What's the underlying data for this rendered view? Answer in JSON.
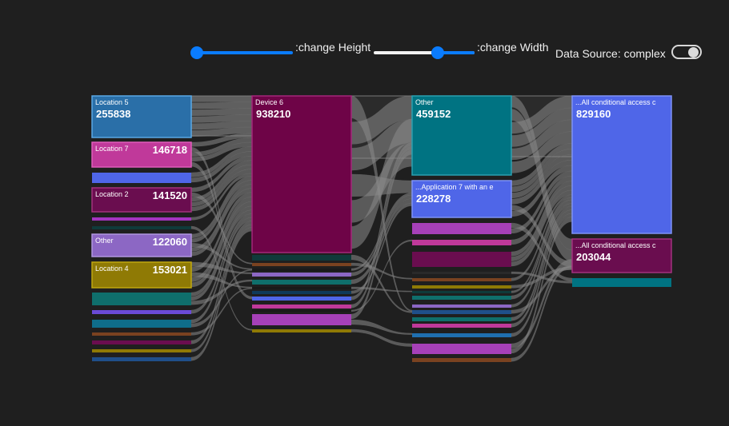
{
  "controls": {
    "height_label": ":change Height",
    "width_label": ":change Width",
    "height_value": 1.0,
    "width_value": 0.6,
    "source_label": "Data Source: complex",
    "source_toggle_on": true,
    "accent_color": "#0a7cff"
  },
  "diagram": {
    "background": "#1f1f1f",
    "link_color": "#8a8a8a",
    "columns": [
      {
        "nodes": [
          {
            "name": "Location 5",
            "value": "255838",
            "color": "#2a6fa8",
            "border": "#5aa9e6"
          },
          {
            "name": "Location 7",
            "value": "146718",
            "color": "#c0399a",
            "border": "#e05cbb"
          },
          {
            "name": "",
            "value": "",
            "color": "#4f66e8"
          },
          {
            "name": "Location 2",
            "value": "141520",
            "color": "#6a0d4f",
            "border": "#a3327f"
          },
          {
            "name": "",
            "value": "",
            "color": "#a334c0"
          },
          {
            "name": "",
            "value": "",
            "color": "#0f3a3a"
          },
          {
            "name": "Other",
            "value": "122060",
            "color": "#8c67c4",
            "border": "#b196e0"
          },
          {
            "name": "Location 4",
            "value": "153021",
            "color": "#8f7a05",
            "border": "#c0a70e"
          },
          {
            "name": "",
            "value": "",
            "color": "#0f6f6c"
          },
          {
            "name": "",
            "value": "",
            "color": "#6a4ad6"
          },
          {
            "name": "",
            "value": "",
            "color": "#0f6d8a"
          },
          {
            "name": "",
            "value": "",
            "color": "#7a4220"
          },
          {
            "name": "",
            "value": "",
            "color": "#6a0d4f"
          },
          {
            "name": "",
            "value": "",
            "color": "#8f7a05"
          },
          {
            "name": "",
            "value": "",
            "color": "#1f4f8a"
          }
        ]
      },
      {
        "nodes": [
          {
            "name": "Device 6",
            "value": "938210",
            "color": "#6e0447",
            "border": "#a3267a"
          },
          {
            "name": "",
            "value": "",
            "color": "#0f3a3a"
          },
          {
            "name": "",
            "value": "",
            "color": "#7a4220"
          },
          {
            "name": "",
            "value": "",
            "color": "#1a1a1a"
          },
          {
            "name": "",
            "value": "",
            "color": "#8c67c4"
          },
          {
            "name": "",
            "value": "",
            "color": "#0f6f6c"
          },
          {
            "name": "",
            "value": "",
            "color": "#1a1a1a"
          },
          {
            "name": "",
            "value": "",
            "color": "#0f3a5a"
          },
          {
            "name": "",
            "value": "",
            "color": "#4f66e8"
          },
          {
            "name": "",
            "value": "",
            "color": "#c0399a"
          },
          {
            "name": "",
            "value": "",
            "color": "#1a1a1a"
          },
          {
            "name": "",
            "value": "",
            "color": "#a640b8"
          },
          {
            "name": "",
            "value": "",
            "color": "#8f7a05"
          }
        ]
      },
      {
        "nodes": [
          {
            "name": "Other",
            "value": "459152",
            "color": "#007382",
            "border": "#2aa0b0"
          },
          {
            "name": "...Application 7 with an e",
            "value": "228278",
            "color": "#4f66e8",
            "border": "#7f92f5"
          },
          {
            "name": "",
            "value": "",
            "color": "#a640b8"
          },
          {
            "name": "",
            "value": "",
            "color": "#c0399a"
          },
          {
            "name": "",
            "value": "",
            "color": "#6a0d4f"
          },
          {
            "name": "",
            "value": "",
            "color": "#2a2a2a"
          },
          {
            "name": "",
            "value": "",
            "color": "#7a4220"
          },
          {
            "name": "",
            "value": "",
            "color": "#8f7a05"
          },
          {
            "name": "",
            "value": "",
            "color": "#0f3a3a"
          },
          {
            "name": "",
            "value": "",
            "color": "#0f6f6c"
          },
          {
            "name": "",
            "value": "",
            "color": "#8c67c4"
          },
          {
            "name": "",
            "value": "",
            "color": "#1f4f8a"
          },
          {
            "name": "",
            "value": "",
            "color": "#0f6f6c"
          },
          {
            "name": "",
            "value": "",
            "color": "#c0399a"
          },
          {
            "name": "",
            "value": "",
            "color": "#1f6fb0"
          },
          {
            "name": "",
            "value": "",
            "color": "#a640b8"
          },
          {
            "name": "",
            "value": "",
            "color": "#7a4220"
          }
        ]
      },
      {
        "nodes": [
          {
            "name": "...All conditional access c",
            "value": "829160",
            "color": "#4f66e8",
            "border": "#7f92f5"
          },
          {
            "name": "...All conditional access c",
            "value": "203044",
            "color": "#6a0d4f",
            "border": "#a3327f"
          },
          {
            "name": "",
            "value": "",
            "color": "#007382"
          }
        ]
      }
    ]
  }
}
